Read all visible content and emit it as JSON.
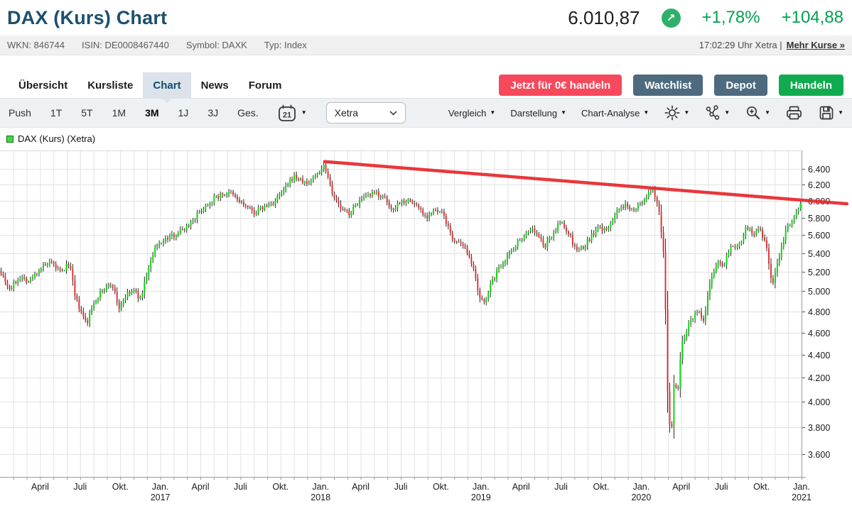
{
  "header": {
    "title": "DAX (Kurs) Chart",
    "price": "6.010,87",
    "change_percent": "+1,78%",
    "change_abs": "+104,88",
    "positive_color": "#00a24d",
    "trend_circle_color": "#2fb06a",
    "meta": {
      "wkn": "WKN: 846744",
      "isin": "ISIN: DE0008467440",
      "symbol": "Symbol: DAXK",
      "typ": "Typ: Index"
    },
    "time": "17:02:29 Uhr Xetra |",
    "more_link": "Mehr Kurse »"
  },
  "nav": {
    "tabs": [
      {
        "label": "Übersicht",
        "active": false
      },
      {
        "label": "Kursliste",
        "active": false
      },
      {
        "label": "Chart",
        "active": true
      },
      {
        "label": "News",
        "active": false
      },
      {
        "label": "Forum",
        "active": false
      }
    ],
    "actions": [
      {
        "label": "Jetzt für 0€ handeln",
        "color": "#f7495c"
      },
      {
        "label": "Watchlist",
        "color": "#4e6a7e"
      },
      {
        "label": "Depot",
        "color": "#4e6a7e"
      },
      {
        "label": "Handeln",
        "color": "#10ab4e"
      }
    ]
  },
  "toolbar": {
    "ranges": [
      "Push",
      "1T",
      "5T",
      "1M",
      "3M",
      "1J",
      "3J",
      "Ges."
    ],
    "active_range": "3M",
    "calendar_day": "21",
    "exchange": "Xetra",
    "menus": [
      "Vergleich",
      "Darstellung",
      "Chart-Analyse"
    ],
    "icon_buttons": [
      "settings",
      "chart-tools",
      "zoom-in",
      "print",
      "save"
    ]
  },
  "chart": {
    "legend": "DAX (Kurs) (Xetra)",
    "legend_color": "#3ddc3d"
  },
  "chart_data": {
    "type": "candlestick",
    "title": "DAX (Kurs) (Xetra)",
    "y_axis": {
      "scale": "log",
      "ticks": [
        6400,
        6200,
        6000,
        5800,
        5600,
        5400,
        5200,
        5000,
        4800,
        4600,
        4400,
        4200,
        4000,
        3800,
        3600
      ],
      "labels": [
        "6.400",
        "6.200",
        "6.000",
        "5.800",
        "5.600",
        "5.400",
        "5.200",
        "5.000",
        "4.800",
        "4.600",
        "4.400",
        "4.200",
        "4.000",
        "3.800",
        "3.600"
      ]
    },
    "x_axis": {
      "start": "2016-01",
      "end": "2021-01",
      "months_total": 60,
      "quarter_labels": [
        {
          "m": 3,
          "label": "April"
        },
        {
          "m": 6,
          "label": "Juli"
        },
        {
          "m": 9,
          "label": "Okt."
        },
        {
          "m": 12,
          "label": "Jan.",
          "year": "2017"
        },
        {
          "m": 15,
          "label": "April"
        },
        {
          "m": 18,
          "label": "Juli"
        },
        {
          "m": 21,
          "label": "Okt."
        },
        {
          "m": 24,
          "label": "Jan.",
          "year": "2018"
        },
        {
          "m": 27,
          "label": "April"
        },
        {
          "m": 30,
          "label": "Juli"
        },
        {
          "m": 33,
          "label": "Okt."
        },
        {
          "m": 36,
          "label": "Jan.",
          "year": "2019"
        },
        {
          "m": 39,
          "label": "April"
        },
        {
          "m": 42,
          "label": "Juli"
        },
        {
          "m": 45,
          "label": "Okt."
        },
        {
          "m": 48,
          "label": "Jan.",
          "year": "2020"
        },
        {
          "m": 51,
          "label": "April"
        },
        {
          "m": 54,
          "label": "Juli"
        },
        {
          "m": 57,
          "label": "Okt."
        },
        {
          "m": 60,
          "label": "Jan.",
          "year": "2021"
        }
      ]
    },
    "last_price": 6010.87,
    "anchors": [
      [
        0,
        5230
      ],
      [
        0.7,
        5020
      ],
      [
        1.5,
        5150
      ],
      [
        2.2,
        5100
      ],
      [
        3,
        5240
      ],
      [
        3.8,
        5290
      ],
      [
        4.6,
        5190
      ],
      [
        5.2,
        5300
      ],
      [
        5.6,
        4950
      ],
      [
        6.1,
        4780
      ],
      [
        6.5,
        4680
      ],
      [
        7,
        4890
      ],
      [
        7.6,
        5000
      ],
      [
        8.4,
        5080
      ],
      [
        8.9,
        4830
      ],
      [
        9.4,
        4950
      ],
      [
        10,
        5010
      ],
      [
        10.5,
        4920
      ],
      [
        11,
        5180
      ],
      [
        11.6,
        5440
      ],
      [
        12,
        5520
      ],
      [
        13,
        5600
      ],
      [
        14,
        5700
      ],
      [
        15,
        5880
      ],
      [
        16,
        6030
      ],
      [
        16.6,
        6080
      ],
      [
        17.3,
        6090
      ],
      [
        18,
        5980
      ],
      [
        19,
        5860
      ],
      [
        19.6,
        5910
      ],
      [
        20.5,
        5980
      ],
      [
        21.3,
        6140
      ],
      [
        22,
        6310
      ],
      [
        22.5,
        6250
      ],
      [
        23,
        6210
      ],
      [
        23.5,
        6290
      ],
      [
        24.3,
        6460
      ],
      [
        24.7,
        6210
      ],
      [
        25.1,
        6010
      ],
      [
        25.6,
        5890
      ],
      [
        26.2,
        5850
      ],
      [
        26.8,
        5990
      ],
      [
        27.5,
        6050
      ],
      [
        28.2,
        6100
      ],
      [
        28.8,
        6020
      ],
      [
        29.3,
        5890
      ],
      [
        29.9,
        5990
      ],
      [
        30.6,
        6010
      ],
      [
        31.3,
        5930
      ],
      [
        31.9,
        5810
      ],
      [
        32.5,
        5880
      ],
      [
        33.2,
        5840
      ],
      [
        33.8,
        5570
      ],
      [
        34.5,
        5480
      ],
      [
        35.1,
        5400
      ],
      [
        35.5,
        5180
      ],
      [
        35.9,
        4920
      ],
      [
        36.2,
        4880
      ],
      [
        36.8,
        5090
      ],
      [
        37.5,
        5280
      ],
      [
        38.3,
        5430
      ],
      [
        39,
        5570
      ],
      [
        39.8,
        5680
      ],
      [
        40.4,
        5560
      ],
      [
        40.8,
        5470
      ],
      [
        41.5,
        5650
      ],
      [
        42,
        5750
      ],
      [
        42.6,
        5610
      ],
      [
        43.1,
        5430
      ],
      [
        43.7,
        5460
      ],
      [
        44.3,
        5600
      ],
      [
        44.9,
        5690
      ],
      [
        45.4,
        5640
      ],
      [
        46,
        5830
      ],
      [
        46.8,
        5950
      ],
      [
        47.5,
        5910
      ],
      [
        48.2,
        6000
      ],
      [
        48.8,
        6130
      ],
      [
        49.3,
        5950
      ],
      [
        49.7,
        5350
      ],
      [
        50,
        3950
      ],
      [
        50.25,
        3720
      ],
      [
        50.5,
        4250
      ],
      [
        50.7,
        4020
      ],
      [
        51,
        4480
      ],
      [
        51.6,
        4700
      ],
      [
        52.2,
        4810
      ],
      [
        52.7,
        4700
      ],
      [
        53.2,
        5140
      ],
      [
        53.7,
        5300
      ],
      [
        54.2,
        5280
      ],
      [
        54.7,
        5490
      ],
      [
        55.3,
        5480
      ],
      [
        55.9,
        5700
      ],
      [
        56.4,
        5610
      ],
      [
        56.9,
        5660
      ],
      [
        57.4,
        5450
      ],
      [
        57.8,
        5040
      ],
      [
        58.3,
        5350
      ],
      [
        58.8,
        5650
      ],
      [
        59.3,
        5790
      ],
      [
        59.7,
        5890
      ],
      [
        60,
        6010
      ]
    ],
    "trendline": {
      "color": "#e8282d",
      "from": [
        24.3,
        6495
      ],
      "to": [
        63.4,
        5965
      ]
    },
    "render": {
      "candles": 380
    },
    "colors": {
      "up": "#00d500",
      "down": "#e22b2b",
      "wick": "#111111",
      "grid": "#e2e2e2"
    }
  }
}
